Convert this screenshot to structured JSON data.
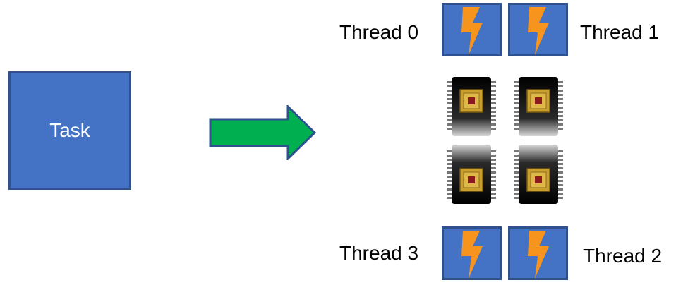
{
  "task": {
    "label": "Task"
  },
  "threads": [
    {
      "label": "Thread 0"
    },
    {
      "label": "Thread 1"
    },
    {
      "label": "Thread 2"
    },
    {
      "label": "Thread 3"
    }
  ],
  "icons": {
    "thread_tile": "lightning-bolt-icon",
    "core": "cpu-chip-icon",
    "arrow": "right-arrow-icon"
  },
  "colors": {
    "task_fill": "#4472C4",
    "task_border": "#2F528F",
    "arrow_fill": "#00B050",
    "arrow_border": "#2F528F",
    "bolt": "#F7941D"
  }
}
